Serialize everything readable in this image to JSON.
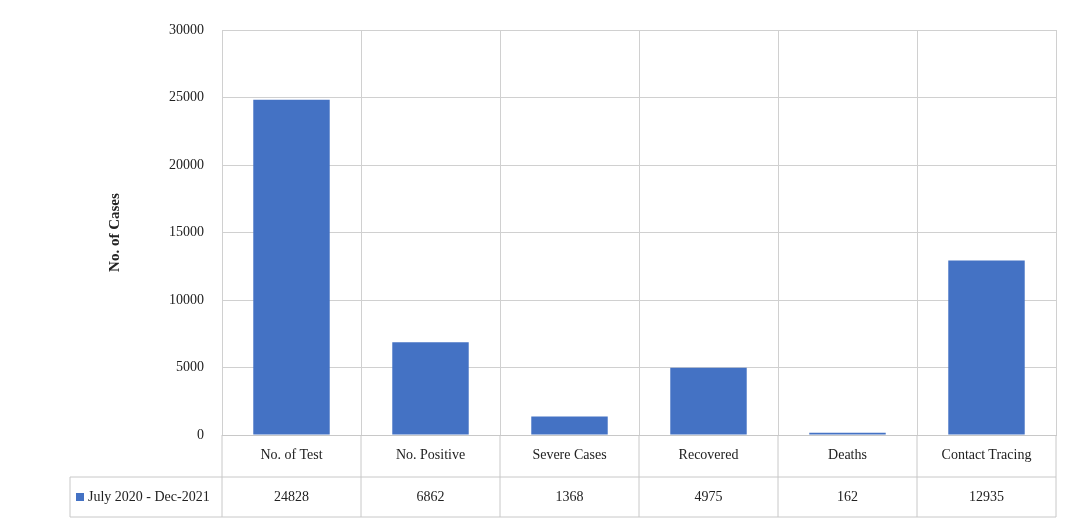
{
  "chart_data": {
    "type": "bar",
    "ylabel": "No. of Cases",
    "categories": [
      "No. of Test",
      "No. Positive",
      "Severe Cases",
      "Recovered",
      "Deaths",
      "Contact Tracing"
    ],
    "series": [
      {
        "name": "July 2020 - Dec-2021",
        "color": "#4472c4",
        "values": [
          24828,
          6862,
          1368,
          4975,
          162,
          12935
        ]
      }
    ],
    "ylim": [
      0,
      30000
    ],
    "yticks": [
      0,
      5000,
      10000,
      15000,
      20000,
      25000,
      30000
    ],
    "grid": true,
    "legend": "bottom",
    "data_labels": true
  }
}
